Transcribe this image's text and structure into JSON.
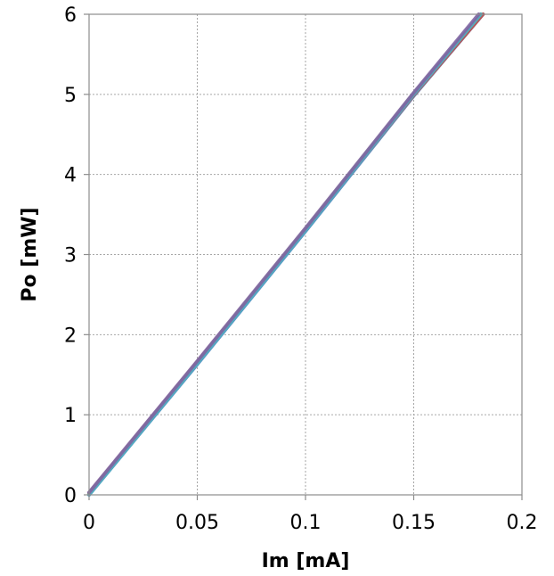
{
  "chart_data": {
    "type": "line",
    "title": "",
    "xlabel": "Im [mA]",
    "ylabel": "Po [mW]",
    "xlim": [
      0,
      0.2
    ],
    "ylim": [
      0,
      6
    ],
    "xticks": [
      0,
      0.05,
      0.1,
      0.15,
      0.2
    ],
    "xtick_labels": [
      "0",
      "0.05",
      "0.1",
      "0.15",
      "0.2"
    ],
    "yticks": [
      0,
      1,
      2,
      3,
      4,
      5,
      6
    ],
    "ytick_labels": [
      "0",
      "1",
      "2",
      "3",
      "4",
      "5",
      "6"
    ],
    "grid": true,
    "legend": "none",
    "series": [
      {
        "color": "#4f81bd",
        "x": [
          0,
          0.05,
          0.1,
          0.15,
          0.182
        ],
        "y": [
          0,
          1.63,
          3.29,
          4.98,
          6.0
        ]
      },
      {
        "color": "#c0504d",
        "x": [
          0,
          0.05,
          0.1,
          0.15,
          0.182
        ],
        "y": [
          0.02,
          1.66,
          3.31,
          4.99,
          6.0
        ]
      },
      {
        "color": "#9bbb59",
        "x": [
          0,
          0.05,
          0.1,
          0.15,
          0.181
        ],
        "y": [
          0.01,
          1.65,
          3.32,
          5.01,
          6.0
        ]
      },
      {
        "color": "#4bacc6",
        "x": [
          0,
          0.05,
          0.1,
          0.15,
          0.181
        ],
        "y": [
          0,
          1.64,
          3.3,
          5.0,
          6.0
        ]
      },
      {
        "color": "#8064a2",
        "x": [
          0,
          0.05,
          0.1,
          0.15,
          0.18
        ],
        "y": [
          0.03,
          1.67,
          3.33,
          5.02,
          6.0
        ]
      }
    ]
  }
}
